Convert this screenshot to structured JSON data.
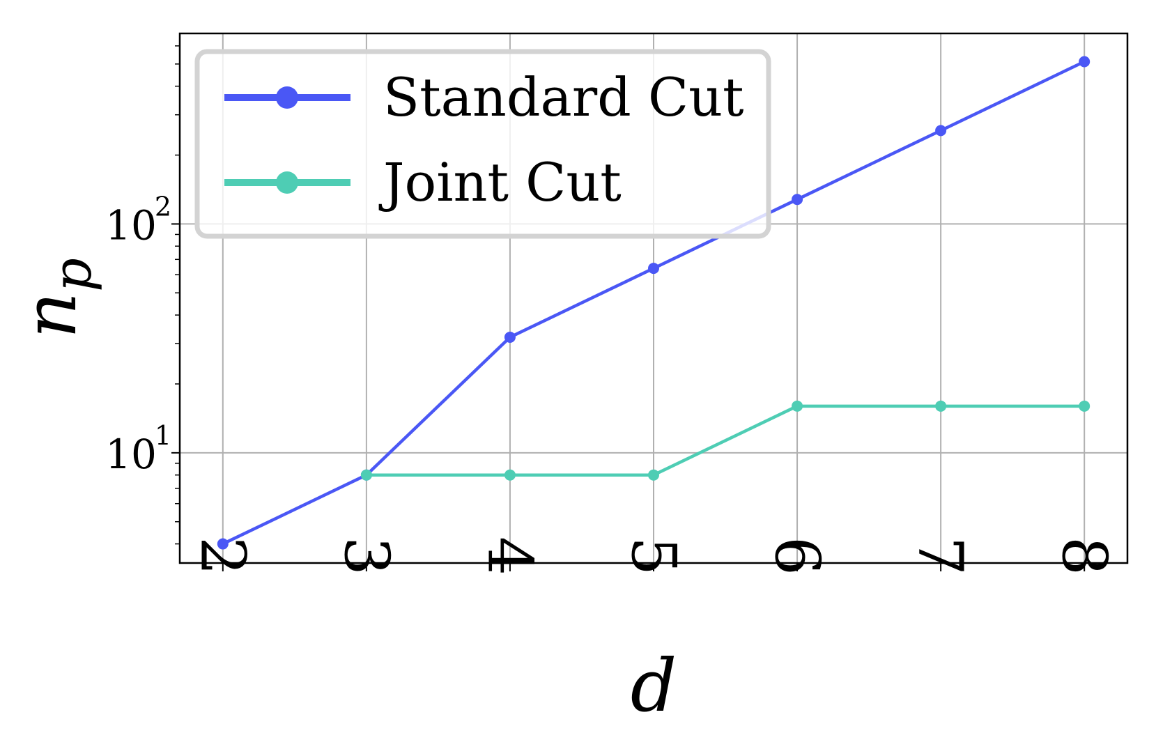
{
  "chart_data": {
    "type": "line",
    "xlabel": "d",
    "ylabel": "n",
    "ylabel_subscript": "p",
    "yscale": "log",
    "x": [
      2,
      3,
      4,
      5,
      6,
      7,
      8
    ],
    "x_tick_labels": [
      "2",
      "3",
      "4",
      "5",
      "6",
      "7",
      "8"
    ],
    "y_major_ticks": [
      {
        "value": 10,
        "base": "10",
        "exponent": "1"
      },
      {
        "value": 100,
        "base": "10",
        "exponent": "2"
      }
    ],
    "ylim": [
      3.3,
      680
    ],
    "xlim": [
      1.7,
      8.3
    ],
    "grid": true,
    "legend_placement": "top-left",
    "series": [
      {
        "name": "Standard Cut",
        "color": "#4a57f5",
        "x": [
          2,
          3,
          4,
          5,
          6,
          7,
          8
        ],
        "values": [
          4,
          8,
          32,
          64,
          128,
          256,
          512
        ]
      },
      {
        "name": "Joint Cut",
        "color": "#4ecdb4",
        "x": [
          3,
          4,
          5,
          6,
          7,
          8
        ],
        "values": [
          8,
          8,
          8,
          16,
          16,
          16
        ]
      }
    ]
  }
}
